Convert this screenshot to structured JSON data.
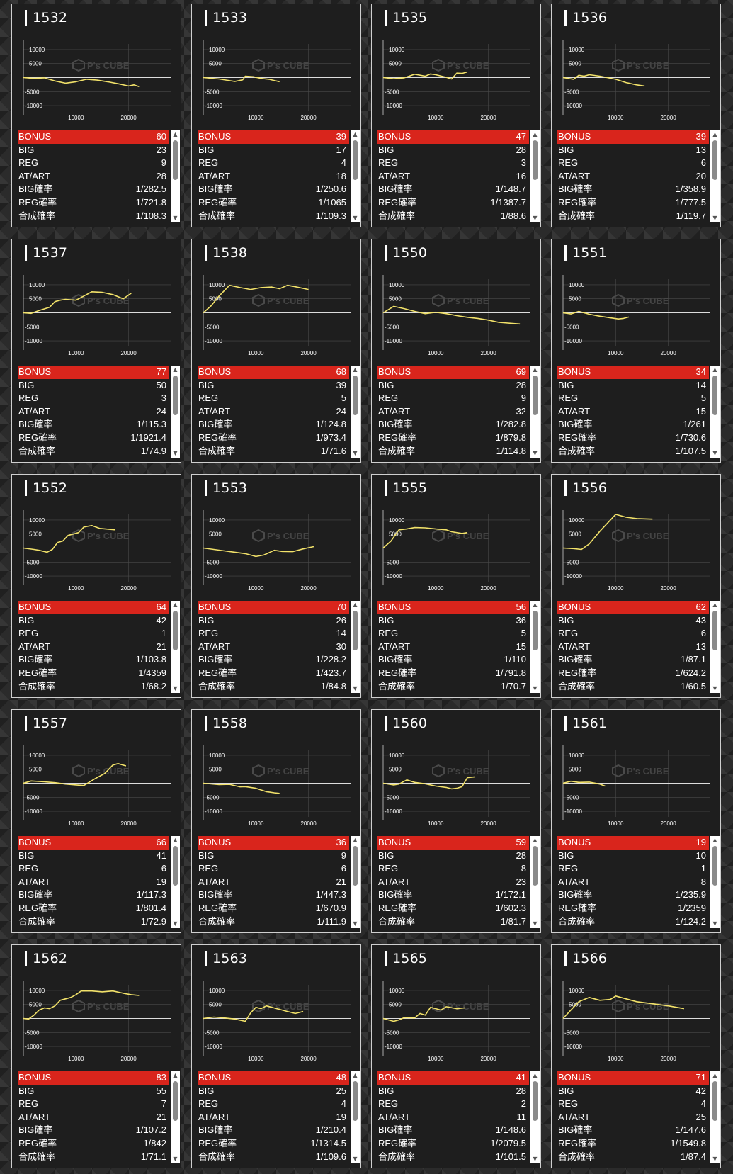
{
  "watermark": "P's CUBE",
  "colors": {
    "bonus_bar": "#d9251c",
    "graph_line": "#f2e26a",
    "card_bg": "#1e1e1e"
  },
  "axis": {
    "y_ticks": [
      "10000",
      "5000",
      "-5000",
      "-10000"
    ],
    "x_ticks": [
      "10000",
      "20000"
    ]
  },
  "labels": {
    "bonus": "BONUS",
    "big": "BIG",
    "reg": "REG",
    "at": "AT/ART",
    "big_rate": "BIG確率",
    "reg_rate": "REG確率",
    "total_rate": "合成確率"
  },
  "machines": [
    {
      "id": "1532",
      "bonus": "60",
      "big": "23",
      "reg": "9",
      "at": "28",
      "big_rate": "1/282.5",
      "reg_rate": "1/721.8",
      "total_rate": "1/108.3",
      "graph": [
        [
          0,
          0
        ],
        [
          2000,
          -300
        ],
        [
          4000,
          -100
        ],
        [
          6000,
          -1200
        ],
        [
          8000,
          -2000
        ],
        [
          10000,
          -1500
        ],
        [
          12000,
          -600
        ],
        [
          14000,
          -900
        ],
        [
          16000,
          -1500
        ],
        [
          18000,
          -2200
        ],
        [
          20000,
          -3000
        ],
        [
          21000,
          -2600
        ],
        [
          22000,
          -3200
        ]
      ]
    },
    {
      "id": "1533",
      "bonus": "39",
      "big": "17",
      "reg": "4",
      "at": "18",
      "big_rate": "1/250.6",
      "reg_rate": "1/1065",
      "total_rate": "1/109.3",
      "graph": [
        [
          0,
          0
        ],
        [
          3000,
          -500
        ],
        [
          6000,
          -1400
        ],
        [
          7500,
          -800
        ],
        [
          8000,
          500
        ],
        [
          9500,
          300
        ],
        [
          11000,
          -300
        ],
        [
          12500,
          -600
        ],
        [
          14500,
          -1500
        ]
      ]
    },
    {
      "id": "1535",
      "bonus": "47",
      "big": "28",
      "reg": "3",
      "at": "16",
      "big_rate": "1/148.7",
      "reg_rate": "1/1387.7",
      "total_rate": "1/88.6",
      "graph": [
        [
          0,
          0
        ],
        [
          2000,
          -400
        ],
        [
          4000,
          -100
        ],
        [
          6000,
          1200
        ],
        [
          8000,
          500
        ],
        [
          9000,
          1300
        ],
        [
          10000,
          1000
        ],
        [
          12000,
          100
        ],
        [
          13000,
          -500
        ],
        [
          14000,
          1600
        ],
        [
          15000,
          1500
        ],
        [
          16000,
          2000
        ]
      ]
    },
    {
      "id": "1536",
      "bonus": "39",
      "big": "13",
      "reg": "6",
      "at": "20",
      "big_rate": "1/358.9",
      "reg_rate": "1/777.5",
      "total_rate": "1/119.7",
      "graph": [
        [
          0,
          0
        ],
        [
          2000,
          -600
        ],
        [
          3000,
          800
        ],
        [
          4000,
          500
        ],
        [
          5000,
          1000
        ],
        [
          7000,
          500
        ],
        [
          10000,
          -600
        ],
        [
          12000,
          -1800
        ],
        [
          14000,
          -2600
        ],
        [
          15500,
          -3000
        ]
      ]
    },
    {
      "id": "1537",
      "bonus": "77",
      "big": "50",
      "reg": "3",
      "at": "24",
      "big_rate": "1/115.3",
      "reg_rate": "1/1921.4",
      "total_rate": "1/74.9",
      "graph": [
        [
          0,
          0
        ],
        [
          1500,
          -200
        ],
        [
          3000,
          800
        ],
        [
          5000,
          2000
        ],
        [
          6000,
          4000
        ],
        [
          7000,
          4500
        ],
        [
          8000,
          4800
        ],
        [
          10000,
          4500
        ],
        [
          12000,
          6500
        ],
        [
          13000,
          7500
        ],
        [
          15000,
          7300
        ],
        [
          17000,
          6500
        ],
        [
          19000,
          5000
        ],
        [
          20500,
          7000
        ]
      ]
    },
    {
      "id": "1538",
      "bonus": "68",
      "big": "39",
      "reg": "5",
      "at": "24",
      "big_rate": "1/124.8",
      "reg_rate": "1/973.4",
      "total_rate": "1/71.6",
      "graph": [
        [
          0,
          0
        ],
        [
          1500,
          2500
        ],
        [
          3000,
          6000
        ],
        [
          5000,
          9800
        ],
        [
          7000,
          9000
        ],
        [
          9000,
          8300
        ],
        [
          11000,
          9000
        ],
        [
          13000,
          9200
        ],
        [
          14500,
          8600
        ],
        [
          16000,
          9800
        ],
        [
          17500,
          9300
        ],
        [
          20000,
          8300
        ]
      ]
    },
    {
      "id": "1550",
      "bonus": "69",
      "big": "28",
      "reg": "9",
      "at": "32",
      "big_rate": "1/282.8",
      "reg_rate": "1/879.8",
      "total_rate": "1/114.8",
      "graph": [
        [
          0,
          0
        ],
        [
          2000,
          2300
        ],
        [
          4000,
          1500
        ],
        [
          6000,
          500
        ],
        [
          8000,
          -300
        ],
        [
          10000,
          200
        ],
        [
          12000,
          -300
        ],
        [
          14000,
          -1000
        ],
        [
          16000,
          -1600
        ],
        [
          18000,
          -2000
        ],
        [
          20000,
          -2600
        ],
        [
          22000,
          -3400
        ],
        [
          26000,
          -4000
        ]
      ]
    },
    {
      "id": "1551",
      "bonus": "34",
      "big": "14",
      "reg": "5",
      "at": "15",
      "big_rate": "1/261",
      "reg_rate": "1/730.6",
      "total_rate": "1/107.5",
      "graph": [
        [
          0,
          0
        ],
        [
          1500,
          -400
        ],
        [
          3000,
          500
        ],
        [
          5000,
          -500
        ],
        [
          7000,
          -1200
        ],
        [
          9000,
          -1800
        ],
        [
          10500,
          -2200
        ],
        [
          11500,
          -2000
        ],
        [
          12500,
          -1500
        ]
      ]
    },
    {
      "id": "1552",
      "bonus": "64",
      "big": "42",
      "reg": "1",
      "at": "21",
      "big_rate": "1/103.8",
      "reg_rate": "1/4359",
      "total_rate": "1/68.2",
      "graph": [
        [
          0,
          0
        ],
        [
          2000,
          -500
        ],
        [
          3000,
          -800
        ],
        [
          4500,
          -1500
        ],
        [
          5500,
          -500
        ],
        [
          6500,
          2000
        ],
        [
          7500,
          2500
        ],
        [
          8500,
          4500
        ],
        [
          9500,
          5000
        ],
        [
          10500,
          5500
        ],
        [
          11500,
          7500
        ],
        [
          13000,
          8000
        ],
        [
          14500,
          7000
        ],
        [
          17500,
          6500
        ]
      ]
    },
    {
      "id": "1553",
      "bonus": "70",
      "big": "26",
      "reg": "14",
      "at": "30",
      "big_rate": "1/228.2",
      "reg_rate": "1/423.7",
      "total_rate": "1/84.8",
      "graph": [
        [
          0,
          0
        ],
        [
          2000,
          -500
        ],
        [
          4000,
          -1000
        ],
        [
          6000,
          -1500
        ],
        [
          8000,
          -2000
        ],
        [
          10000,
          -3000
        ],
        [
          11500,
          -2500
        ],
        [
          13500,
          -800
        ],
        [
          15000,
          -1200
        ],
        [
          17000,
          -1300
        ],
        [
          19000,
          -300
        ],
        [
          21000,
          500
        ]
      ]
    },
    {
      "id": "1555",
      "bonus": "56",
      "big": "36",
      "reg": "5",
      "at": "15",
      "big_rate": "1/110",
      "reg_rate": "1/791.8",
      "total_rate": "1/70.7",
      "graph": [
        [
          0,
          0
        ],
        [
          1500,
          2500
        ],
        [
          3000,
          6500
        ],
        [
          4500,
          6800
        ],
        [
          6000,
          7300
        ],
        [
          8000,
          7200
        ],
        [
          10000,
          6800
        ],
        [
          12000,
          6500
        ],
        [
          13000,
          5800
        ],
        [
          15000,
          5200
        ],
        [
          16000,
          5500
        ]
      ]
    },
    {
      "id": "1556",
      "bonus": "62",
      "big": "43",
      "reg": "6",
      "at": "13",
      "big_rate": "1/87.1",
      "reg_rate": "1/624.2",
      "total_rate": "1/60.5",
      "graph": [
        [
          0,
          0
        ],
        [
          2000,
          -200
        ],
        [
          3500,
          -500
        ],
        [
          5000,
          1500
        ],
        [
          7000,
          6000
        ],
        [
          9000,
          10000
        ],
        [
          10000,
          12000
        ],
        [
          12000,
          11000
        ],
        [
          14000,
          10500
        ],
        [
          17000,
          10300
        ]
      ]
    },
    {
      "id": "1557",
      "bonus": "66",
      "big": "41",
      "reg": "6",
      "at": "19",
      "big_rate": "1/117.3",
      "reg_rate": "1/801.4",
      "total_rate": "1/72.9",
      "graph": [
        [
          0,
          0
        ],
        [
          1500,
          800
        ],
        [
          4000,
          500
        ],
        [
          6000,
          200
        ],
        [
          8000,
          -300
        ],
        [
          10000,
          -600
        ],
        [
          11500,
          -800
        ],
        [
          13500,
          1500
        ],
        [
          15500,
          3500
        ],
        [
          17000,
          6500
        ],
        [
          18000,
          7000
        ],
        [
          19500,
          6200
        ]
      ]
    },
    {
      "id": "1558",
      "bonus": "36",
      "big": "9",
      "reg": "6",
      "at": "21",
      "big_rate": "1/447.3",
      "reg_rate": "1/670.9",
      "total_rate": "1/111.9",
      "graph": [
        [
          0,
          0
        ],
        [
          3000,
          -500
        ],
        [
          5000,
          -400
        ],
        [
          7000,
          -1300
        ],
        [
          8000,
          -1200
        ],
        [
          10000,
          -1800
        ],
        [
          12000,
          -3000
        ],
        [
          13500,
          -3400
        ],
        [
          14500,
          -3600
        ]
      ]
    },
    {
      "id": "1560",
      "bonus": "59",
      "big": "28",
      "reg": "8",
      "at": "23",
      "big_rate": "1/172.1",
      "reg_rate": "1/602.3",
      "total_rate": "1/81.7",
      "graph": [
        [
          0,
          0
        ],
        [
          2000,
          -600
        ],
        [
          3000,
          -300
        ],
        [
          4500,
          1200
        ],
        [
          6000,
          300
        ],
        [
          8000,
          -200
        ],
        [
          10000,
          -1000
        ],
        [
          12000,
          -1500
        ],
        [
          13000,
          -2000
        ],
        [
          14000,
          -1800
        ],
        [
          15000,
          -1200
        ],
        [
          16000,
          2000
        ],
        [
          17500,
          2300
        ]
      ]
    },
    {
      "id": "1561",
      "bonus": "19",
      "big": "10",
      "reg": "1",
      "at": "8",
      "big_rate": "1/235.9",
      "reg_rate": "1/2359",
      "total_rate": "1/124.2",
      "graph": [
        [
          0,
          0
        ],
        [
          1500,
          700
        ],
        [
          3000,
          300
        ],
        [
          5000,
          400
        ],
        [
          7000,
          -300
        ],
        [
          8000,
          -1000
        ]
      ]
    },
    {
      "id": "1562",
      "bonus": "83",
      "big": "55",
      "reg": "7",
      "at": "21",
      "big_rate": "1/107.2",
      "reg_rate": "1/842",
      "total_rate": "1/71.1",
      "graph": [
        [
          0,
          0
        ],
        [
          1000,
          -200
        ],
        [
          2000,
          1200
        ],
        [
          3000,
          3000
        ],
        [
          4000,
          3800
        ],
        [
          5000,
          3500
        ],
        [
          6000,
          4500
        ],
        [
          7000,
          6500
        ],
        [
          9000,
          7500
        ],
        [
          10000,
          8500
        ],
        [
          11000,
          9800
        ],
        [
          13000,
          9800
        ],
        [
          15000,
          9500
        ],
        [
          17000,
          9800
        ],
        [
          19000,
          9000
        ],
        [
          20500,
          8500
        ],
        [
          22000,
          8200
        ]
      ]
    },
    {
      "id": "1563",
      "bonus": "48",
      "big": "25",
      "reg": "4",
      "at": "19",
      "big_rate": "1/210.4",
      "reg_rate": "1/1314.5",
      "total_rate": "1/109.6",
      "graph": [
        [
          0,
          0
        ],
        [
          2000,
          500
        ],
        [
          4000,
          200
        ],
        [
          6000,
          -200
        ],
        [
          8000,
          -1000
        ],
        [
          9000,
          2000
        ],
        [
          10000,
          4000
        ],
        [
          11000,
          3500
        ],
        [
          12000,
          4500
        ],
        [
          14000,
          3500
        ],
        [
          16000,
          2500
        ],
        [
          17500,
          1800
        ],
        [
          19000,
          2500
        ]
      ]
    },
    {
      "id": "1565",
      "bonus": "41",
      "big": "28",
      "reg": "2",
      "at": "11",
      "big_rate": "1/148.6",
      "reg_rate": "1/2079.5",
      "total_rate": "1/101.5",
      "graph": [
        [
          0,
          0
        ],
        [
          2000,
          -1000
        ],
        [
          3000,
          -500
        ],
        [
          4000,
          300
        ],
        [
          6000,
          200
        ],
        [
          7000,
          1800
        ],
        [
          8000,
          1200
        ],
        [
          9000,
          4000
        ],
        [
          10000,
          3500
        ],
        [
          11000,
          3000
        ],
        [
          12000,
          4200
        ],
        [
          14000,
          3500
        ],
        [
          15500,
          3800
        ]
      ]
    },
    {
      "id": "1566",
      "bonus": "71",
      "big": "42",
      "reg": "4",
      "at": "25",
      "big_rate": "1/147.6",
      "reg_rate": "1/1549.8",
      "total_rate": "1/87.4",
      "graph": [
        [
          0,
          0
        ],
        [
          1500,
          3000
        ],
        [
          3000,
          6000
        ],
        [
          5000,
          7500
        ],
        [
          7000,
          6500
        ],
        [
          9000,
          6800
        ],
        [
          10000,
          8000
        ],
        [
          12000,
          7000
        ],
        [
          14000,
          6000
        ],
        [
          16000,
          5500
        ],
        [
          18000,
          5000
        ],
        [
          20000,
          4500
        ],
        [
          23000,
          3500
        ]
      ]
    }
  ]
}
